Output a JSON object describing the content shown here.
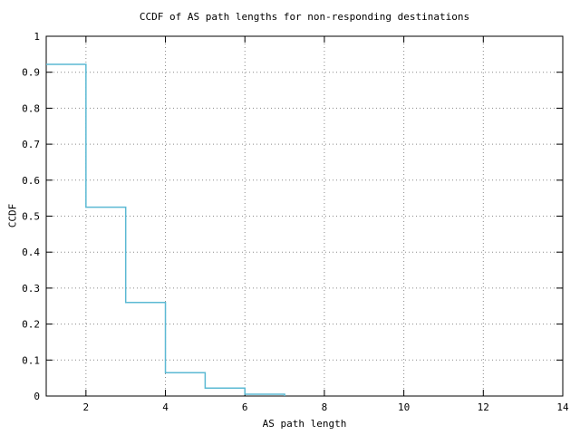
{
  "page": {
    "background": "#ffffff"
  },
  "chart_data": {
    "type": "line",
    "subtype": "step-post",
    "title": "CCDF of AS path lengths for non-responding destinations",
    "xlabel": "AS path length",
    "ylabel": "CCDF",
    "xlim": [
      1,
      14
    ],
    "ylim": [
      0,
      1
    ],
    "xticks": [
      2,
      4,
      6,
      8,
      10,
      12,
      14
    ],
    "xtick_labels": [
      "2",
      "4",
      "6",
      "8",
      "10",
      "12",
      "14"
    ],
    "yticks": [
      0,
      0.1,
      0.2,
      0.3,
      0.4,
      0.5,
      0.6,
      0.7,
      0.8,
      0.9,
      1
    ],
    "ytick_labels": [
      "0",
      "0.1",
      "0.2",
      "0.3",
      "0.4",
      "0.5",
      "0.6",
      "0.7",
      "0.8",
      "0.9",
      "1"
    ],
    "grid": true,
    "grid_style": "dotted",
    "legend": "none",
    "line_color": "#5bb9d3",
    "border_color": "#000000",
    "grid_color": "#8a8a8a",
    "series": [
      {
        "name": "ccdf",
        "x": [
          1,
          2,
          3,
          4,
          5,
          6,
          7
        ],
        "y": [
          0.922,
          0.525,
          0.26,
          0.065,
          0.022,
          0.005,
          0.0
        ]
      }
    ]
  }
}
